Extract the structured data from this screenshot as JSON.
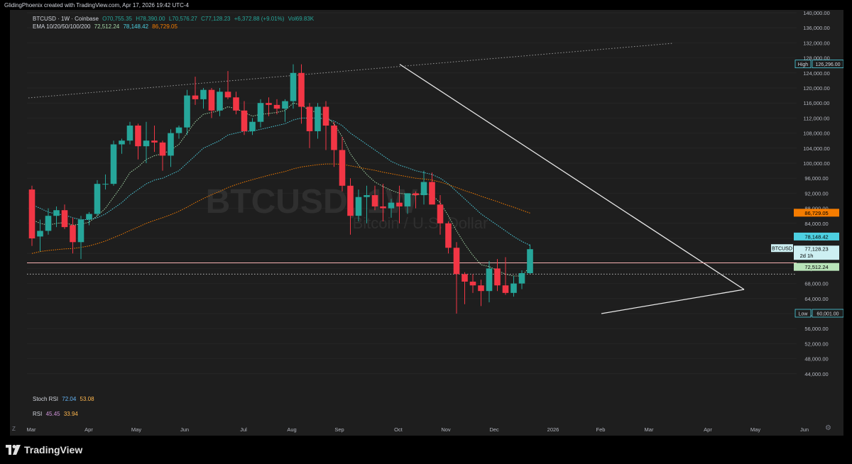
{
  "header": {
    "author_line": "GlidingPhoenix created with TradingView.com, Apr 17, 2026 19:42 UTC-4"
  },
  "symbol_line": {
    "symbol": "BTCUSD · 1W · Coinbase",
    "open": "O70,755.35",
    "high": "H78,390.00",
    "low": "L70,576.27",
    "close": "C77,128.23",
    "change": "+6,372.88 (+9.01%)",
    "volume": "Vol69.83K"
  },
  "ema_line": {
    "label": "EMA 10/20/50/100/200",
    "v1": "72,512.24",
    "v2": "78,148.42",
    "v3": "86,729.05"
  },
  "indicators": {
    "stoch_label": "Stoch RSI",
    "stoch_k": "72.04",
    "stoch_d": "53.08",
    "rsi_label": "RSI",
    "rsi_v1": "45.45",
    "rsi_v2": "33.94"
  },
  "watermark": {
    "symbol": "BTCUSD, 1W",
    "name": "Bitcoin / U.S. Dollar"
  },
  "colors": {
    "up": "#26a69a",
    "down": "#f23645",
    "ema_fast": "#a5d6a7",
    "ema_mid": "#4dd0e1",
    "ema_slow": "#f57c00",
    "background": "#1e1e1e"
  },
  "axis_badges": {
    "high_label": "High",
    "high_value": "126,296.00",
    "low_label": "Low",
    "low_value": "60,001.00",
    "ema_slow": "86,729.05",
    "ema_mid": "78,148.42",
    "symbol": "BTCUSD",
    "price": "77,128.23",
    "countdown": "2d 1h",
    "ema_fast": "72,512.24"
  },
  "footer": {
    "brand": "TradingView"
  },
  "corner_icons": {
    "left": "Z",
    "right": "⚙"
  },
  "chart_data": {
    "type": "candlestick",
    "timeframe": "1W",
    "ylim": [
      40000,
      140000
    ],
    "y_ticks": [
      44000,
      48000,
      52000,
      56000,
      60000,
      64000,
      68000,
      72000,
      76000,
      80000,
      84000,
      88000,
      92000,
      96000,
      100000,
      104000,
      108000,
      112000,
      116000,
      120000,
      124000,
      128000,
      132000,
      136000,
      140000
    ],
    "y_tick_labels": [
      "44,000.00",
      "48,000.00",
      "52,000.00",
      "56,000.00",
      "60,000.00",
      "64,000.00",
      "68,000.00",
      "72,000.00",
      "76,000.00",
      "80,000.00",
      "84,000.00",
      "88,000.00",
      "92,000.00",
      "96,000.00",
      "100,000.00",
      "104,000.00",
      "108,000.00",
      "112,000.00",
      "116,000.00",
      "120,000.00",
      "124,000.00",
      "128,000.00",
      "132,000.00",
      "136,000.00",
      "140,000.00"
    ],
    "x_labels": [
      "Mar",
      "Apr",
      "May",
      "Jun",
      "Jul",
      "Aug",
      "Sep",
      "Oct",
      "Nov",
      "Dec",
      "2026",
      "Feb",
      "Mar",
      "Apr",
      "May",
      "Jun"
    ],
    "candles": [
      {
        "o": 93000,
        "h": 94000,
        "l": 78000,
        "c": 80000
      },
      {
        "o": 80500,
        "h": 85000,
        "l": 76500,
        "c": 82000
      },
      {
        "o": 82000,
        "h": 88000,
        "l": 81000,
        "c": 86000
      },
      {
        "o": 86000,
        "h": 88500,
        "l": 83000,
        "c": 87500
      },
      {
        "o": 87500,
        "h": 89000,
        "l": 82500,
        "c": 83000
      },
      {
        "o": 83500,
        "h": 85500,
        "l": 76000,
        "c": 79000
      },
      {
        "o": 79000,
        "h": 86000,
        "l": 74500,
        "c": 85000
      },
      {
        "o": 85000,
        "h": 87000,
        "l": 83500,
        "c": 86500
      },
      {
        "o": 86500,
        "h": 95500,
        "l": 86000,
        "c": 94500
      },
      {
        "o": 94500,
        "h": 97000,
        "l": 93000,
        "c": 94500
      },
      {
        "o": 94500,
        "h": 106000,
        "l": 94000,
        "c": 105000
      },
      {
        "o": 105000,
        "h": 106500,
        "l": 102500,
        "c": 106000
      },
      {
        "o": 106000,
        "h": 111000,
        "l": 105000,
        "c": 110000
      },
      {
        "o": 110000,
        "h": 110500,
        "l": 101000,
        "c": 104500
      },
      {
        "o": 104500,
        "h": 111000,
        "l": 100000,
        "c": 106000
      },
      {
        "o": 106000,
        "h": 110000,
        "l": 103000,
        "c": 105500
      },
      {
        "o": 105500,
        "h": 106000,
        "l": 98000,
        "c": 102000
      },
      {
        "o": 102000,
        "h": 109000,
        "l": 99000,
        "c": 108000
      },
      {
        "o": 108000,
        "h": 110000,
        "l": 106500,
        "c": 109500
      },
      {
        "o": 109500,
        "h": 119500,
        "l": 107500,
        "c": 118000
      },
      {
        "o": 118000,
        "h": 123000,
        "l": 115500,
        "c": 117000
      },
      {
        "o": 117000,
        "h": 120000,
        "l": 114500,
        "c": 119500
      },
      {
        "o": 119500,
        "h": 120000,
        "l": 112000,
        "c": 114000
      },
      {
        "o": 114000,
        "h": 120000,
        "l": 112500,
        "c": 119000
      },
      {
        "o": 119000,
        "h": 124500,
        "l": 117000,
        "c": 117500
      },
      {
        "o": 117500,
        "h": 119000,
        "l": 113000,
        "c": 114000
      },
      {
        "o": 114000,
        "h": 116500,
        "l": 107500,
        "c": 108500
      },
      {
        "o": 108500,
        "h": 112000,
        "l": 107500,
        "c": 111000
      },
      {
        "o": 111000,
        "h": 117000,
        "l": 109500,
        "c": 116000
      },
      {
        "o": 116000,
        "h": 117500,
        "l": 112500,
        "c": 115500
      },
      {
        "o": 115500,
        "h": 117000,
        "l": 113000,
        "c": 114500
      },
      {
        "o": 114500,
        "h": 117000,
        "l": 111000,
        "c": 116500
      },
      {
        "o": 116500,
        "h": 126296,
        "l": 114500,
        "c": 124000
      },
      {
        "o": 124000,
        "h": 126296,
        "l": 110500,
        "c": 115000
      },
      {
        "o": 115000,
        "h": 116000,
        "l": 104000,
        "c": 108500
      },
      {
        "o": 108500,
        "h": 116000,
        "l": 106500,
        "c": 115000
      },
      {
        "o": 115000,
        "h": 116500,
        "l": 103500,
        "c": 110000
      },
      {
        "o": 110000,
        "h": 111000,
        "l": 99000,
        "c": 103500
      },
      {
        "o": 103500,
        "h": 107000,
        "l": 92500,
        "c": 94000
      },
      {
        "o": 94000,
        "h": 96000,
        "l": 81000,
        "c": 86000
      },
      {
        "o": 86000,
        "h": 93000,
        "l": 84500,
        "c": 91000
      },
      {
        "o": 91000,
        "h": 94000,
        "l": 84000,
        "c": 91500
      },
      {
        "o": 91500,
        "h": 94000,
        "l": 87500,
        "c": 88500
      },
      {
        "o": 88500,
        "h": 94500,
        "l": 84500,
        "c": 88000
      },
      {
        "o": 88000,
        "h": 90500,
        "l": 85500,
        "c": 89500
      },
      {
        "o": 89500,
        "h": 94000,
        "l": 84000,
        "c": 88500
      },
      {
        "o": 88500,
        "h": 92000,
        "l": 86500,
        "c": 92000
      },
      {
        "o": 92000,
        "h": 92500,
        "l": 88000,
        "c": 91500
      },
      {
        "o": 91500,
        "h": 98000,
        "l": 89000,
        "c": 95000
      },
      {
        "o": 95000,
        "h": 97500,
        "l": 89500,
        "c": 89000
      },
      {
        "o": 89000,
        "h": 91500,
        "l": 81000,
        "c": 84000
      },
      {
        "o": 84000,
        "h": 84500,
        "l": 76000,
        "c": 77500
      },
      {
        "o": 77500,
        "h": 79000,
        "l": 60001,
        "c": 70500
      },
      {
        "o": 70500,
        "h": 71000,
        "l": 62500,
        "c": 68500
      },
      {
        "o": 68500,
        "h": 70500,
        "l": 65500,
        "c": 67500
      },
      {
        "o": 67500,
        "h": 69000,
        "l": 62000,
        "c": 66000
      },
      {
        "o": 66000,
        "h": 74000,
        "l": 63000,
        "c": 72000
      },
      {
        "o": 72000,
        "h": 74500,
        "l": 66000,
        "c": 67500
      },
      {
        "o": 67500,
        "h": 75000,
        "l": 65000,
        "c": 65500
      },
      {
        "o": 65500,
        "h": 70000,
        "l": 64500,
        "c": 68000
      },
      {
        "o": 68000,
        "h": 71500,
        "l": 66500,
        "c": 70755.35
      },
      {
        "o": 70755.35,
        "h": 78390,
        "l": 70576.27,
        "c": 77128.23
      }
    ],
    "series": [
      {
        "name": "EMA 10",
        "values": [
          85000,
          84000,
          83500,
          84000,
          84200,
          83500,
          83800,
          84300,
          86000,
          88000,
          91000,
          94000,
          97500,
          99000,
          101000,
          102000,
          102500,
          103500,
          105000,
          108000,
          111000,
          113000,
          113500,
          114000,
          115000,
          114500,
          113500,
          112500,
          113000,
          113200,
          113500,
          114000,
          116000,
          115500,
          114000,
          113500,
          112500,
          110500,
          107000,
          102500,
          99500,
          97000,
          95000,
          93800,
          92800,
          92000,
          91800,
          91500,
          92000,
          91500,
          89500,
          86000,
          82000,
          78500,
          75500,
          73000,
          72500,
          71500,
          70500,
          70000,
          70000,
          72500
        ]
      },
      {
        "name": "EMA 20",
        "values": [
          89000,
          88000,
          87000,
          86500,
          86200,
          85500,
          85000,
          85000,
          85500,
          86500,
          88000,
          89500,
          91500,
          93000,
          94500,
          95500,
          96000,
          97000,
          98000,
          100000,
          102000,
          104000,
          105000,
          106000,
          107500,
          108000,
          108500,
          108500,
          109000,
          109500,
          110000,
          110500,
          111500,
          112000,
          112000,
          112000,
          111800,
          111200,
          110000,
          108000,
          106500,
          105000,
          103500,
          102000,
          100500,
          99500,
          98800,
          98000,
          97500,
          97000,
          96000,
          94500,
          92500,
          90500,
          88500,
          86500,
          85000,
          83500,
          82000,
          80500,
          79200,
          78148
        ]
      },
      {
        "name": "EMA 50",
        "values": [
          76000,
          76500,
          76800,
          77000,
          77200,
          77300,
          77600,
          78000,
          78600,
          79300,
          80200,
          81100,
          82100,
          83000,
          84000,
          84800,
          85500,
          86300,
          87200,
          88300,
          89500,
          90600,
          91600,
          92500,
          93500,
          94300,
          95000,
          95600,
          96200,
          96800,
          97300,
          97800,
          98500,
          99000,
          99300,
          99600,
          99800,
          99800,
          99700,
          99300,
          98900,
          98500,
          98100,
          97600,
          97200,
          96800,
          96400,
          96000,
          95800,
          95500,
          95000,
          94300,
          93500,
          92700,
          92000,
          91200,
          90500,
          89800,
          89000,
          88300,
          87500,
          86729
        ]
      }
    ],
    "annotations": {
      "high": 126296,
      "low": 60001,
      "horizontal_level": 73500,
      "last_close": 77128.23
    }
  }
}
